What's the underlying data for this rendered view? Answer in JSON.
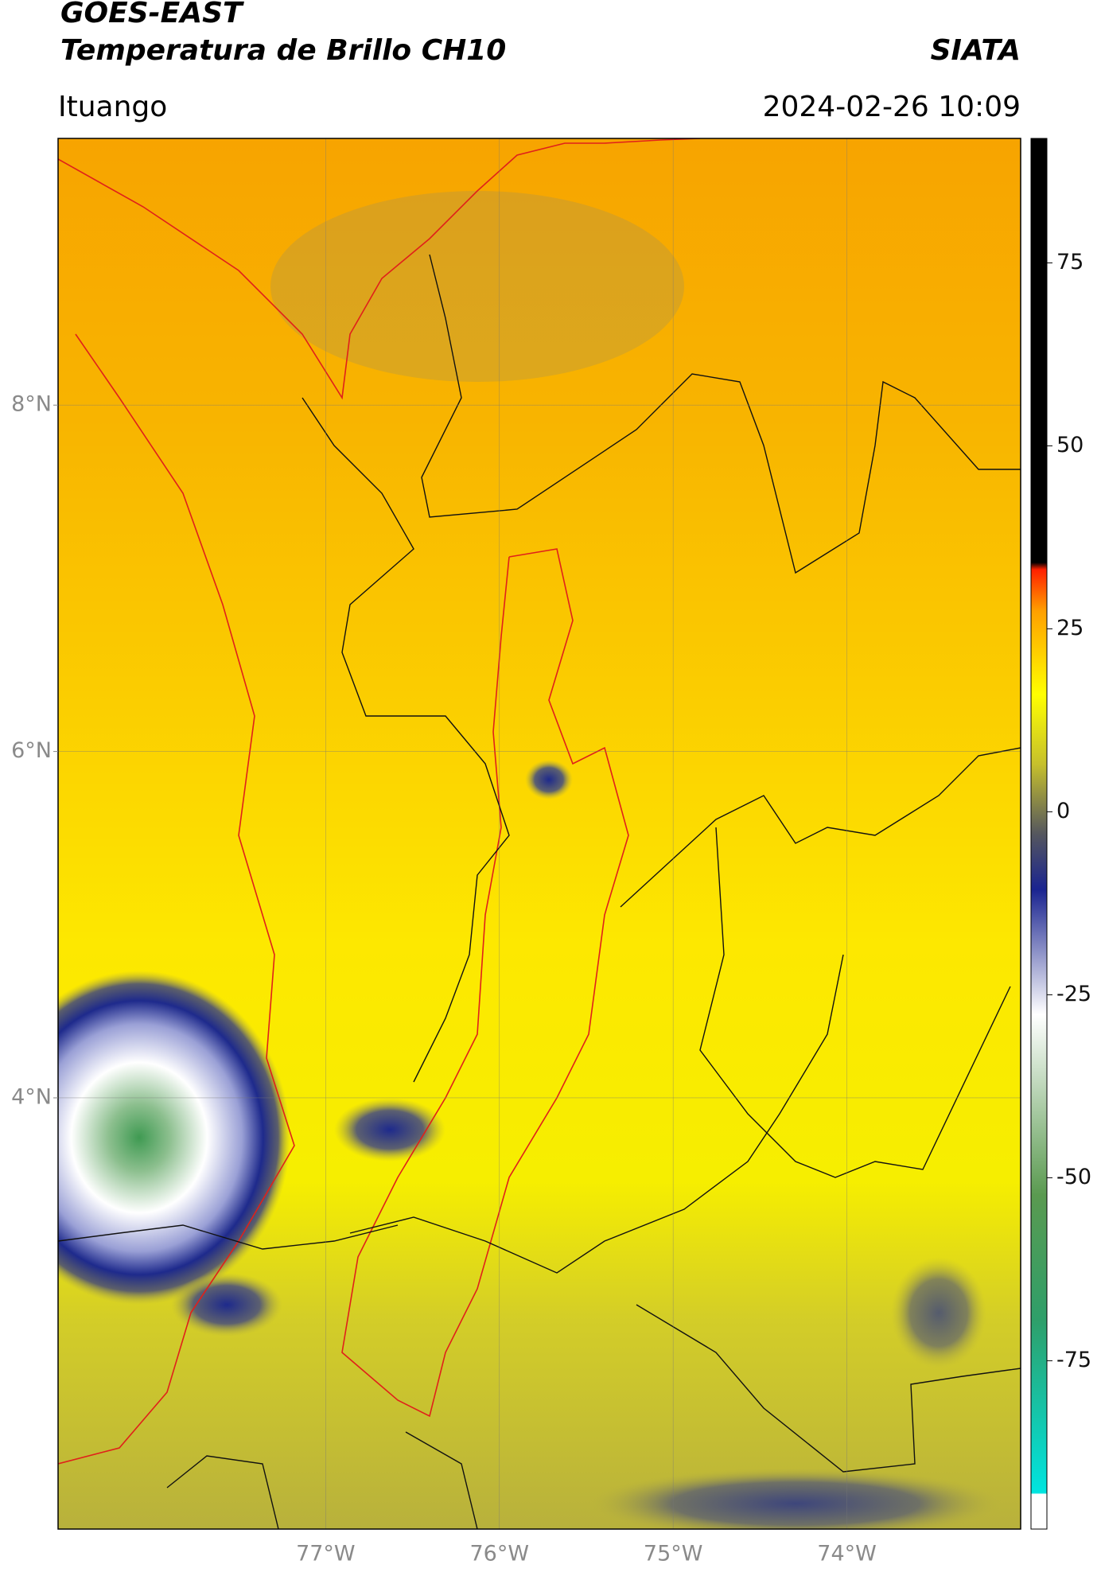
{
  "chart_data": {
    "type": "map",
    "title": "GOES-EAST",
    "subtitle": "Temperatura de Brillo CH10",
    "source": "SIATA",
    "location": "Ituango",
    "datetime": "2024-02-26 10:09",
    "xlim": [
      -78.54,
      -73.0
    ],
    "ylim": [
      1.51,
      9.54
    ],
    "xticks": [
      {
        "value": -77,
        "label": "77°W"
      },
      {
        "value": -76,
        "label": "76°W"
      },
      {
        "value": -75,
        "label": "75°W"
      },
      {
        "value": -74,
        "label": "74°W"
      }
    ],
    "yticks": [
      {
        "value": 4,
        "label": "4°N"
      },
      {
        "value": 6,
        "label": "6°N"
      },
      {
        "value": 8,
        "label": "8°N"
      }
    ],
    "grid": true,
    "colorbar": {
      "lim": [
        -98,
        92
      ],
      "ticks": [
        -75,
        -50,
        -25,
        0,
        25,
        50,
        75
      ]
    }
  }
}
